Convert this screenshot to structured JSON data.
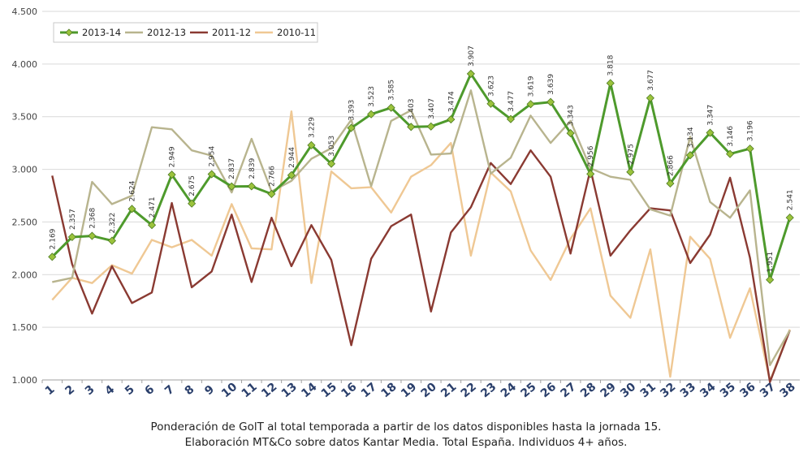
{
  "chart_data": {
    "type": "line",
    "title": "",
    "xlabel": "",
    "ylabel": "",
    "ylim": [
      1000,
      4500
    ],
    "yticks": [
      "1.000",
      "1.500",
      "2.000",
      "2.500",
      "3.000",
      "3.500",
      "4.000",
      "4.500"
    ],
    "ytick_values": [
      1000,
      1500,
      2000,
      2500,
      3000,
      3500,
      4000,
      4500
    ],
    "categories": [
      "1",
      "2",
      "3",
      "4",
      "5",
      "6",
      "7",
      "8",
      "9",
      "10",
      "11",
      "12",
      "13",
      "14",
      "15",
      "16",
      "17",
      "18",
      "19",
      "20",
      "21",
      "22",
      "23",
      "24",
      "25",
      "26",
      "27",
      "28",
      "29",
      "30",
      "31",
      "32",
      "33",
      "34",
      "35",
      "36",
      "37",
      "38"
    ],
    "grid": true,
    "legend_position": "top-left",
    "series": [
      {
        "name": "2013-14",
        "color": "#4e9a2c",
        "marker": "diamond",
        "marker_color": "#9bc33c",
        "values": [
          2169,
          2357,
          2368,
          2322,
          2624,
          2471,
          2949,
          2675,
          2954,
          2837,
          2839,
          2766,
          2944,
          3229,
          3053,
          3393,
          3523,
          3585,
          3403,
          3407,
          3474,
          3907,
          3623,
          3477,
          3619,
          3639,
          3343,
          2956,
          3818,
          2975,
          3677,
          2866,
          3134,
          3347,
          3146,
          3196,
          1951,
          2541
        ],
        "labels": [
          "2.169",
          "2.357",
          "2.368",
          "2.322",
          "2.624",
          "2.471",
          "2.949",
          "2.675",
          "2.954",
          "2.837",
          "2.839",
          "2.766",
          "2.944",
          "3.229",
          "3.053",
          "3.393",
          "3.523",
          "3.585",
          "3.403",
          "3.407",
          "3.474",
          "3.907",
          "3.623",
          "3.477",
          "3.619",
          "3.639",
          "3.343",
          "2.956",
          "3.818",
          "2.975",
          "3.677",
          "2.866",
          "3.134",
          "3.347",
          "3.146",
          "3.196",
          "1.951",
          "2.541"
        ]
      },
      {
        "name": "2012-13",
        "color": "#b8b48e",
        "values": [
          1930,
          1970,
          2880,
          2670,
          2750,
          3400,
          3380,
          3180,
          3130,
          2780,
          3290,
          2790,
          2890,
          3100,
          3200,
          3470,
          2840,
          3460,
          3560,
          3140,
          3150,
          3750,
          2960,
          3110,
          3510,
          3250,
          3460,
          3010,
          2930,
          2900,
          2620,
          2560,
          3310,
          2690,
          2540,
          2800,
          1140,
          1470
        ]
      },
      {
        "name": "2011-12",
        "color": "#8a3a32",
        "values": [
          2940,
          2100,
          1630,
          2080,
          1730,
          1830,
          2680,
          1880,
          2030,
          2570,
          1930,
          2540,
          2080,
          2470,
          2140,
          1330,
          2150,
          2460,
          2570,
          1650,
          2400,
          2640,
          3060,
          2860,
          3180,
          2930,
          2200,
          3000,
          2180,
          2420,
          2630,
          2610,
          2110,
          2380,
          2920,
          2160,
          980,
          1470
        ]
      },
      {
        "name": "2010-11",
        "color": "#efc894",
        "values": [
          1760,
          1970,
          1920,
          2090,
          2010,
          2330,
          2260,
          2330,
          2180,
          2670,
          2250,
          2240,
          3550,
          1920,
          2980,
          2820,
          2830,
          2590,
          2930,
          3040,
          3250,
          2180,
          2970,
          2790,
          2230,
          1950,
          2340,
          2630,
          1800,
          1590,
          2240,
          1030,
          2360,
          2150,
          1400,
          1870,
          990,
          1480
        ]
      }
    ],
    "caption_line1": "Ponderación de GolT al total temporada a partir de los datos disponibles hasta la jornada 15.",
    "caption_line2": "Elaboración MT&Co sobre datos Kantar Media. Total España. Individuos 4+ años."
  }
}
